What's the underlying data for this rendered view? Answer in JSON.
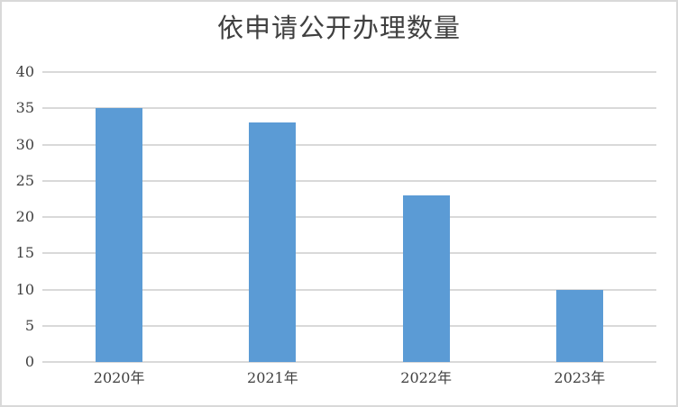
{
  "chart_data": {
    "type": "bar",
    "title": "依申请公开办理数量",
    "categories": [
      "2020年",
      "2021年",
      "2022年",
      "2023年"
    ],
    "values": [
      35,
      33,
      23,
      10
    ],
    "xlabel": "",
    "ylabel": "",
    "ylim": [
      0,
      40
    ],
    "yticks": [
      0,
      5,
      10,
      15,
      20,
      25,
      30,
      35,
      40
    ],
    "grid": true,
    "legend": false,
    "colors": {
      "bar": "#5B9BD5",
      "gridline": "#D9D9D9",
      "axis_line": "#D9D9D9",
      "text": "#404040",
      "background": "#FFFFFF",
      "border": "#D9D9D9"
    }
  }
}
